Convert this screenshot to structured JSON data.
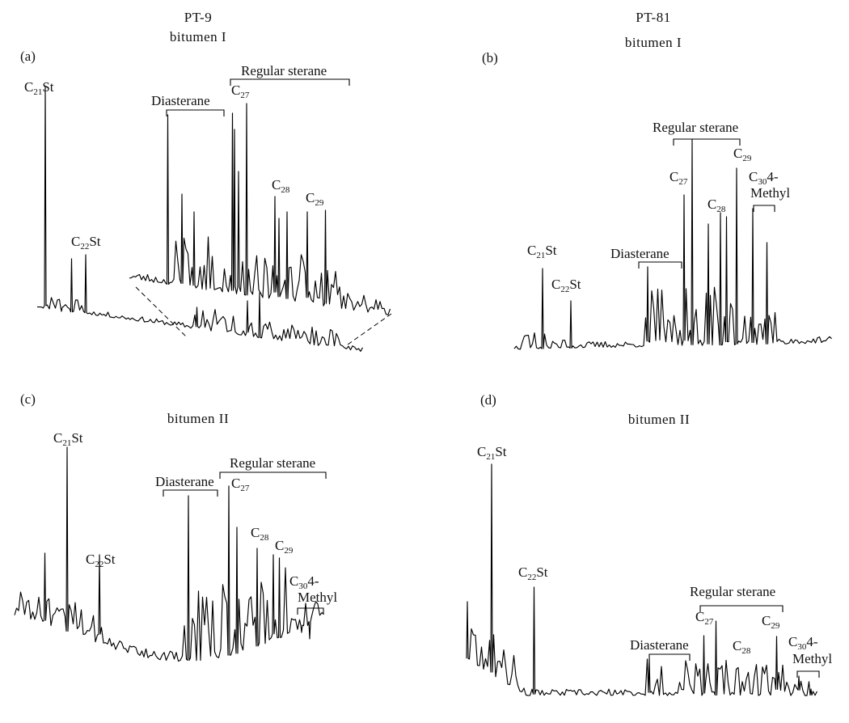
{
  "figure": {
    "column_titles": {
      "left_well": "PT-9",
      "left_bitumen": "bitumen I",
      "right_well": "PT-81",
      "right_bitumen": "bitumen I"
    }
  },
  "chart_data": [
    {
      "type": "line",
      "panel": "(a)",
      "well": "PT-9",
      "title": "bitumen I",
      "xlabel": "",
      "ylabel": "",
      "inset": "enlarged sterane region (expanded view of the main trace)",
      "peak_labels": [
        {
          "base": "C",
          "sub": "21",
          "suffix": "St"
        },
        {
          "base": "C",
          "sub": "22",
          "suffix": "St"
        },
        {
          "base": "C",
          "sub": "27",
          "suffix": ""
        },
        {
          "base": "C",
          "sub": "28",
          "suffix": ""
        },
        {
          "base": "C",
          "sub": "29",
          "suffix": ""
        }
      ],
      "brackets": [
        {
          "label": "Diasterane"
        },
        {
          "label": "Regular sterane"
        }
      ],
      "main_peaks_relative_height": [
        1.0,
        0.2,
        0.26
      ],
      "inset_peaks_relative_height": [
        0.82,
        0.85,
        0.88,
        0.35,
        0.39,
        0.46
      ]
    },
    {
      "type": "line",
      "panel": "(b)",
      "well": "PT-81",
      "title": "bitumen I",
      "xlabel": "",
      "ylabel": "",
      "peak_labels": [
        {
          "base": "C",
          "sub": "21",
          "suffix": "St"
        },
        {
          "base": "C",
          "sub": "22",
          "suffix": "St"
        },
        {
          "base": "C",
          "sub": "27",
          "suffix": ""
        },
        {
          "base": "C",
          "sub": "28",
          "suffix": ""
        },
        {
          "base": "C",
          "sub": "29",
          "suffix": ""
        },
        {
          "base": "C",
          "sub": "30",
          "suffix": "4-",
          "second_line": "Methyl"
        }
      ],
      "brackets": [
        {
          "label": "Diasterane"
        },
        {
          "label": "Regular sterane"
        },
        {
          "label": ""
        }
      ],
      "peaks_relative_height": [
        0.38,
        0.22,
        1.0,
        0.74,
        0.55
      ]
    },
    {
      "type": "line",
      "panel": "(c)",
      "well": "PT-9",
      "title": "bitumen II",
      "xlabel": "",
      "ylabel": "",
      "peak_labels": [
        {
          "base": "C",
          "sub": "21",
          "suffix": "St"
        },
        {
          "base": "C",
          "sub": "22",
          "suffix": "St"
        },
        {
          "base": "C",
          "sub": "27",
          "suffix": ""
        },
        {
          "base": "C",
          "sub": "28",
          "suffix": ""
        },
        {
          "base": "C",
          "sub": "29",
          "suffix": ""
        },
        {
          "base": "C",
          "sub": "30",
          "suffix": "4-",
          "second_line": "Methyl"
        }
      ],
      "brackets": [
        {
          "label": "Diasterane"
        },
        {
          "label": "Regular sterane"
        },
        {
          "label": ""
        }
      ],
      "peaks_relative_height": [
        1.0,
        0.33,
        0.78,
        0.85,
        0.49,
        0.45
      ]
    },
    {
      "type": "line",
      "panel": "(d)",
      "well": "PT-81",
      "title": "bitumen II",
      "xlabel": "",
      "ylabel": "",
      "peak_labels": [
        {
          "base": "C",
          "sub": "21",
          "suffix": "St"
        },
        {
          "base": "C",
          "sub": "22",
          "suffix": "St"
        },
        {
          "base": "C",
          "sub": "27",
          "suffix": ""
        },
        {
          "base": "C",
          "sub": "28",
          "suffix": ""
        },
        {
          "base": "C",
          "sub": "29",
          "suffix": ""
        },
        {
          "base": "C",
          "sub": "30",
          "suffix": "4-",
          "second_line": "Methyl"
        }
      ],
      "brackets": [
        {
          "label": "Diasterane"
        },
        {
          "label": "Regular sterane"
        },
        {
          "label": ""
        }
      ],
      "peaks_relative_height": [
        1.0,
        0.45,
        0.23,
        0.28,
        0.24
      ]
    }
  ]
}
